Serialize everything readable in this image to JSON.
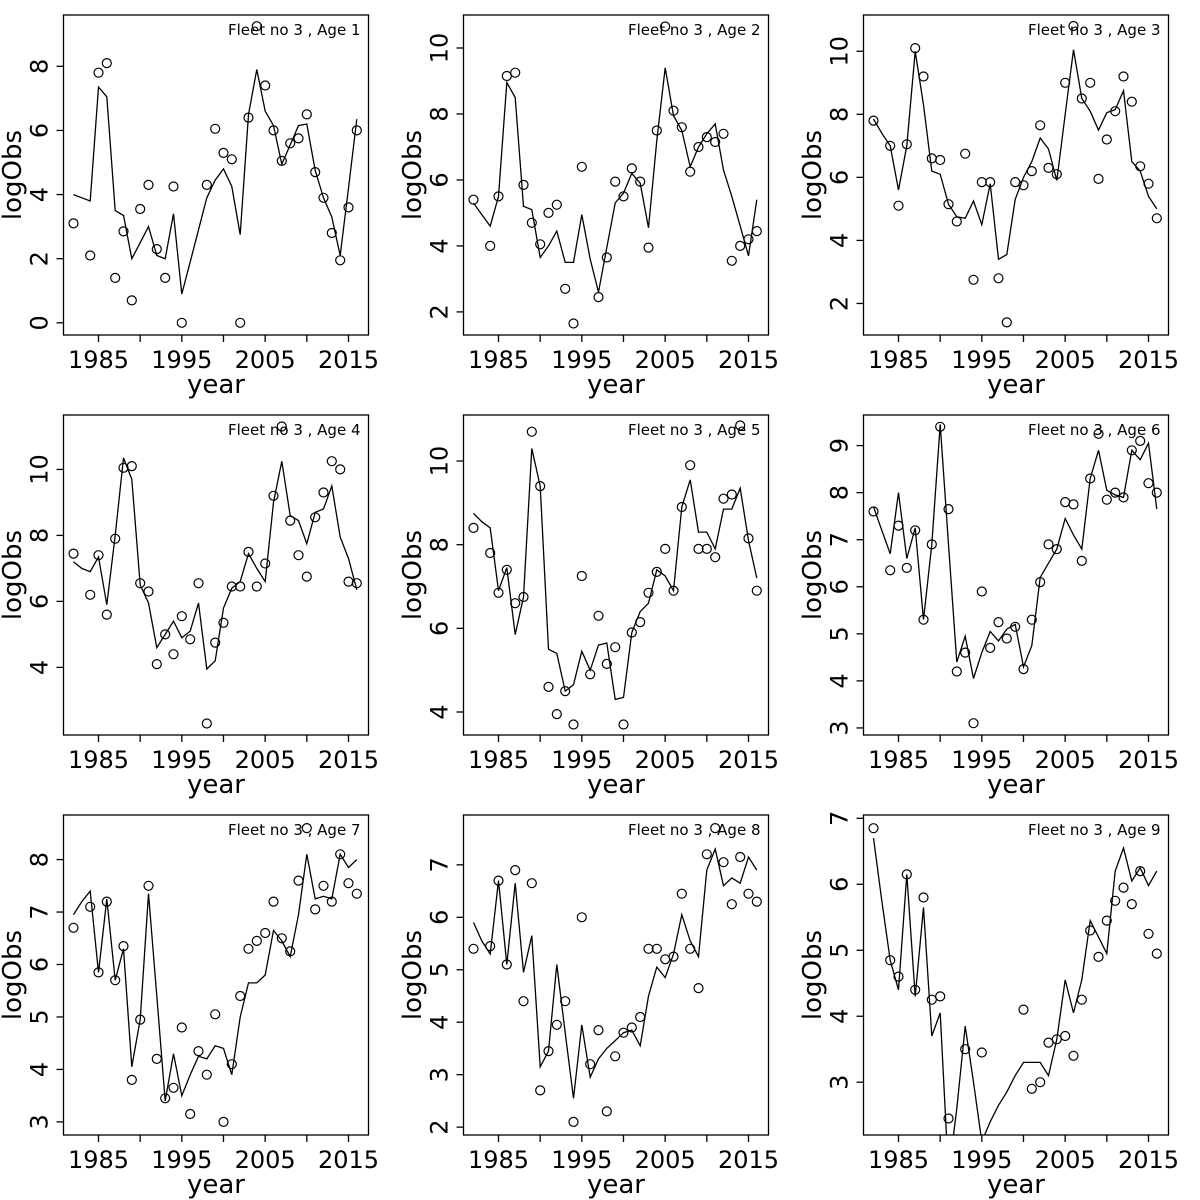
{
  "page": {
    "background": "#ffffff",
    "grid": {
      "rows": 3,
      "cols": 3
    }
  },
  "chart_common": {
    "xlabel": "year",
    "ylabel": "logObs",
    "years": [
      1982,
      1983,
      1984,
      1985,
      1986,
      1987,
      1988,
      1989,
      1990,
      1991,
      1992,
      1993,
      1994,
      1995,
      1996,
      1997,
      1998,
      1999,
      2000,
      2001,
      2002,
      2003,
      2004,
      2005,
      2006,
      2007,
      2008,
      2009,
      2010,
      2011,
      2012,
      2013,
      2014,
      2015,
      2016
    ],
    "xlim": [
      1980.8,
      2017.4
    ],
    "xticks": [
      1985,
      1990,
      1995,
      2000,
      2005,
      2010,
      2015
    ],
    "xtick_labels_at": [
      1985,
      1995,
      2005,
      2015
    ],
    "legend": {
      "observed": "open circles",
      "fitted": "solid line"
    },
    "colors": {
      "line": "#000000",
      "point": "#000000",
      "box": "#000000",
      "text": "#000000"
    }
  },
  "chart_data": [
    {
      "type": "line",
      "title": "Fleet no 3 , Age 1",
      "ylim": [
        -0.38,
        9.6
      ],
      "yticks": [
        0,
        2,
        4,
        6,
        8
      ],
      "series": [
        {
          "name": "observed",
          "style": "points",
          "values": [
            3.1,
            null,
            2.1,
            7.8,
            8.1,
            1.4,
            2.85,
            0.7,
            3.55,
            4.3,
            2.3,
            1.4,
            4.25,
            0.0,
            null,
            null,
            4.3,
            6.05,
            5.3,
            5.1,
            0.0,
            6.4,
            9.25,
            7.4,
            6.0,
            5.05,
            5.6,
            5.75,
            6.5,
            4.7,
            3.9,
            2.8,
            1.95,
            3.6,
            6.0
          ]
        },
        {
          "name": "fitted",
          "style": "line",
          "values": [
            4.0,
            3.9,
            3.8,
            7.35,
            7.05,
            3.5,
            3.35,
            2.0,
            2.5,
            3.0,
            2.1,
            2.0,
            3.4,
            0.9,
            1.9,
            2.9,
            3.9,
            4.45,
            4.8,
            4.25,
            2.75,
            6.5,
            7.9,
            6.6,
            6.15,
            4.95,
            5.55,
            6.15,
            6.2,
            4.75,
            3.9,
            3.3,
            2.1,
            4.2,
            6.35
          ]
        }
      ]
    },
    {
      "type": "line",
      "title": "Fleet no 3 , Age 2",
      "ylim": [
        1.3,
        11.0
      ],
      "yticks": [
        2,
        4,
        6,
        8,
        10
      ],
      "series": [
        {
          "name": "observed",
          "style": "points",
          "values": [
            5.4,
            null,
            4.0,
            5.5,
            9.15,
            9.25,
            5.85,
            4.7,
            4.05,
            5.0,
            5.25,
            2.7,
            1.65,
            6.4,
            null,
            2.45,
            3.65,
            5.95,
            5.5,
            6.35,
            5.95,
            3.95,
            7.5,
            10.65,
            8.1,
            7.6,
            6.25,
            7.0,
            7.3,
            7.15,
            7.4,
            3.55,
            4.0,
            4.2,
            4.45
          ]
        },
        {
          "name": "fitted",
          "style": "line",
          "values": [
            5.3,
            4.95,
            4.6,
            5.5,
            8.95,
            8.5,
            5.2,
            5.1,
            3.65,
            4.0,
            4.45,
            3.5,
            3.5,
            4.95,
            3.6,
            2.6,
            3.95,
            5.3,
            5.6,
            6.2,
            5.9,
            4.55,
            7.2,
            9.4,
            7.95,
            7.5,
            6.4,
            7.0,
            7.4,
            7.7,
            6.3,
            5.5,
            4.6,
            3.7,
            5.4
          ]
        }
      ]
    },
    {
      "type": "line",
      "title": "Fleet no 3 , Age 3",
      "ylim": [
        1.0,
        11.15
      ],
      "yticks": [
        2,
        4,
        6,
        8,
        10
      ],
      "series": [
        {
          "name": "observed",
          "style": "points",
          "values": [
            7.8,
            null,
            7.0,
            5.1,
            7.05,
            10.1,
            9.2,
            6.6,
            6.55,
            5.15,
            4.6,
            6.75,
            2.75,
            5.85,
            5.85,
            2.8,
            1.4,
            5.85,
            5.75,
            6.2,
            7.65,
            6.3,
            6.1,
            9.0,
            10.8,
            8.5,
            9.0,
            5.95,
            7.2,
            8.1,
            9.2,
            8.4,
            6.35,
            5.8,
            4.7
          ]
        },
        {
          "name": "fitted",
          "style": "line",
          "values": [
            7.85,
            7.4,
            7.0,
            5.6,
            7.0,
            10.0,
            8.3,
            6.2,
            6.1,
            5.15,
            4.75,
            4.7,
            5.25,
            4.5,
            5.8,
            3.4,
            3.55,
            5.3,
            6.0,
            6.5,
            7.25,
            6.9,
            5.9,
            8.0,
            10.05,
            8.5,
            8.1,
            7.5,
            8.05,
            8.15,
            8.75,
            6.5,
            6.2,
            5.4,
            5.0
          ]
        }
      ]
    },
    {
      "type": "line",
      "title": "Fleet no 3 , Age 4",
      "ylim": [
        1.95,
        11.65
      ],
      "yticks": [
        4,
        6,
        8,
        10
      ],
      "series": [
        {
          "name": "observed",
          "style": "points",
          "values": [
            7.45,
            null,
            6.2,
            7.4,
            5.6,
            7.9,
            10.05,
            10.1,
            6.55,
            6.3,
            4.1,
            5.0,
            4.4,
            5.55,
            4.85,
            6.55,
            2.3,
            4.75,
            5.35,
            6.45,
            6.45,
            7.5,
            6.45,
            7.15,
            9.2,
            11.3,
            8.45,
            7.4,
            6.75,
            8.55,
            9.3,
            10.25,
            10.0,
            6.6,
            6.55
          ]
        },
        {
          "name": "fitted",
          "style": "line",
          "values": [
            7.2,
            7.0,
            6.9,
            7.35,
            5.9,
            8.0,
            10.35,
            9.7,
            6.5,
            5.95,
            4.6,
            5.0,
            5.4,
            4.9,
            5.1,
            5.95,
            3.95,
            4.2,
            5.8,
            6.4,
            6.6,
            7.45,
            7.0,
            6.6,
            9.0,
            10.25,
            8.6,
            8.45,
            7.75,
            8.7,
            8.8,
            9.5,
            7.95,
            7.3,
            6.35
          ]
        }
      ]
    },
    {
      "type": "line",
      "title": "Fleet no 3 , Age 5",
      "ylim": [
        3.45,
        11.1
      ],
      "yticks": [
        4,
        6,
        8,
        10
      ],
      "series": [
        {
          "name": "observed",
          "style": "points",
          "values": [
            8.4,
            null,
            7.8,
            6.85,
            7.4,
            6.6,
            6.75,
            10.7,
            9.4,
            4.6,
            3.95,
            4.5,
            3.7,
            7.25,
            4.9,
            6.3,
            5.15,
            5.55,
            3.7,
            5.9,
            6.15,
            6.85,
            7.35,
            7.9,
            6.9,
            8.9,
            9.9,
            7.9,
            7.9,
            7.7,
            9.1,
            9.2,
            10.85,
            8.15,
            6.9
          ]
        },
        {
          "name": "fitted",
          "style": "line",
          "values": [
            8.75,
            8.55,
            8.4,
            6.9,
            7.45,
            5.85,
            6.75,
            10.3,
            9.4,
            5.5,
            5.4,
            4.5,
            4.65,
            5.45,
            5.0,
            5.6,
            5.65,
            4.3,
            4.35,
            5.9,
            6.4,
            6.6,
            7.4,
            7.25,
            6.9,
            8.9,
            9.55,
            8.3,
            8.3,
            7.9,
            8.85,
            8.85,
            9.35,
            8.1,
            7.2
          ]
        }
      ]
    },
    {
      "type": "line",
      "title": "Fleet no 3 , Age 6",
      "ylim": [
        2.85,
        9.65
      ],
      "yticks": [
        3,
        4,
        5,
        6,
        7,
        8,
        9
      ],
      "series": [
        {
          "name": "observed",
          "style": "points",
          "values": [
            7.6,
            null,
            6.35,
            7.3,
            6.4,
            7.2,
            5.3,
            6.9,
            9.4,
            7.65,
            4.2,
            4.6,
            3.1,
            5.9,
            4.7,
            5.25,
            4.9,
            5.15,
            4.25,
            5.3,
            6.1,
            6.9,
            6.8,
            7.8,
            7.75,
            6.55,
            8.3,
            9.25,
            7.85,
            8.0,
            7.9,
            8.9,
            9.1,
            8.2,
            8.0
          ]
        },
        {
          "name": "fitted",
          "style": "line",
          "values": [
            7.7,
            7.2,
            6.7,
            8.0,
            6.6,
            7.25,
            5.3,
            6.9,
            9.45,
            6.9,
            4.4,
            4.95,
            4.05,
            4.6,
            5.05,
            4.85,
            5.1,
            5.2,
            4.3,
            4.75,
            6.2,
            6.5,
            6.8,
            7.45,
            7.1,
            6.8,
            8.3,
            8.9,
            8.05,
            7.95,
            7.9,
            8.9,
            8.7,
            9.05,
            7.65
          ]
        }
      ]
    },
    {
      "type": "line",
      "title": "Fleet no 3 , Age 7",
      "ylim": [
        2.75,
        8.85
      ],
      "yticks": [
        3,
        4,
        5,
        6,
        7,
        8
      ],
      "series": [
        {
          "name": "observed",
          "style": "points",
          "values": [
            6.7,
            null,
            7.1,
            5.85,
            7.2,
            5.7,
            6.35,
            3.8,
            4.95,
            7.5,
            4.2,
            3.45,
            3.65,
            4.8,
            3.15,
            4.35,
            3.9,
            5.05,
            3.0,
            4.1,
            5.4,
            6.3,
            6.45,
            6.6,
            7.2,
            6.5,
            6.25,
            7.6,
            8.6,
            7.05,
            7.5,
            7.2,
            8.1,
            7.55,
            7.35
          ]
        },
        {
          "name": "fitted",
          "style": "line",
          "values": [
            6.95,
            7.2,
            7.4,
            5.85,
            7.25,
            5.7,
            6.3,
            4.05,
            4.95,
            7.35,
            5.4,
            3.4,
            4.3,
            3.5,
            3.9,
            4.25,
            4.2,
            4.45,
            4.4,
            3.9,
            5.0,
            5.65,
            5.65,
            5.8,
            6.65,
            6.45,
            6.15,
            6.95,
            8.1,
            7.25,
            7.3,
            7.25,
            8.1,
            7.85,
            8.0
          ]
        }
      ]
    },
    {
      "type": "line",
      "title": "Fleet no 3 , Age 8",
      "ylim": [
        1.85,
        7.95
      ],
      "yticks": [
        2,
        3,
        4,
        5,
        6,
        7
      ],
      "series": [
        {
          "name": "observed",
          "style": "points",
          "values": [
            5.4,
            null,
            5.45,
            6.7,
            5.1,
            6.9,
            4.4,
            6.65,
            2.7,
            3.45,
            3.95,
            4.4,
            2.1,
            6.0,
            3.2,
            3.85,
            2.3,
            3.35,
            3.8,
            3.9,
            4.1,
            5.4,
            5.4,
            5.2,
            5.25,
            6.45,
            5.4,
            4.65,
            7.2,
            7.7,
            7.05,
            6.25,
            7.15,
            6.45,
            6.3
          ]
        },
        {
          "name": "fitted",
          "style": "line",
          "values": [
            5.9,
            5.55,
            5.3,
            6.7,
            5.1,
            6.65,
            4.95,
            5.65,
            3.15,
            3.45,
            5.1,
            3.8,
            2.55,
            3.95,
            2.95,
            3.3,
            3.5,
            3.65,
            3.8,
            3.85,
            3.55,
            4.5,
            5.05,
            4.85,
            5.3,
            6.05,
            5.55,
            5.25,
            6.9,
            7.3,
            6.6,
            6.75,
            6.65,
            7.15,
            6.9
          ]
        }
      ]
    },
    {
      "type": "line",
      "title": "Fleet no 3 , Age 9",
      "ylim": [
        2.2,
        7.05
      ],
      "yticks": [
        3,
        4,
        5,
        6,
        7
      ],
      "series": [
        {
          "name": "observed",
          "style": "points",
          "values": [
            6.85,
            null,
            4.85,
            4.6,
            6.15,
            4.4,
            5.8,
            4.25,
            4.3,
            2.45,
            null,
            3.5,
            null,
            3.45,
            null,
            null,
            null,
            null,
            4.1,
            2.9,
            3.0,
            3.6,
            3.65,
            3.7,
            3.4,
            4.25,
            5.3,
            4.9,
            5.45,
            5.75,
            5.95,
            5.7,
            6.2,
            5.25,
            4.95
          ]
        },
        {
          "name": "fitted",
          "style": "line",
          "values": [
            6.7,
            5.75,
            4.85,
            4.4,
            6.15,
            4.3,
            5.65,
            3.7,
            4.05,
            1.6,
            2.6,
            3.85,
            3.0,
            2.1,
            2.4,
            2.65,
            2.85,
            3.1,
            3.3,
            3.3,
            3.3,
            3.1,
            3.65,
            4.55,
            4.05,
            4.55,
            5.45,
            5.2,
            4.95,
            6.2,
            6.55,
            6.05,
            6.25,
            5.98,
            6.2
          ]
        }
      ]
    }
  ]
}
